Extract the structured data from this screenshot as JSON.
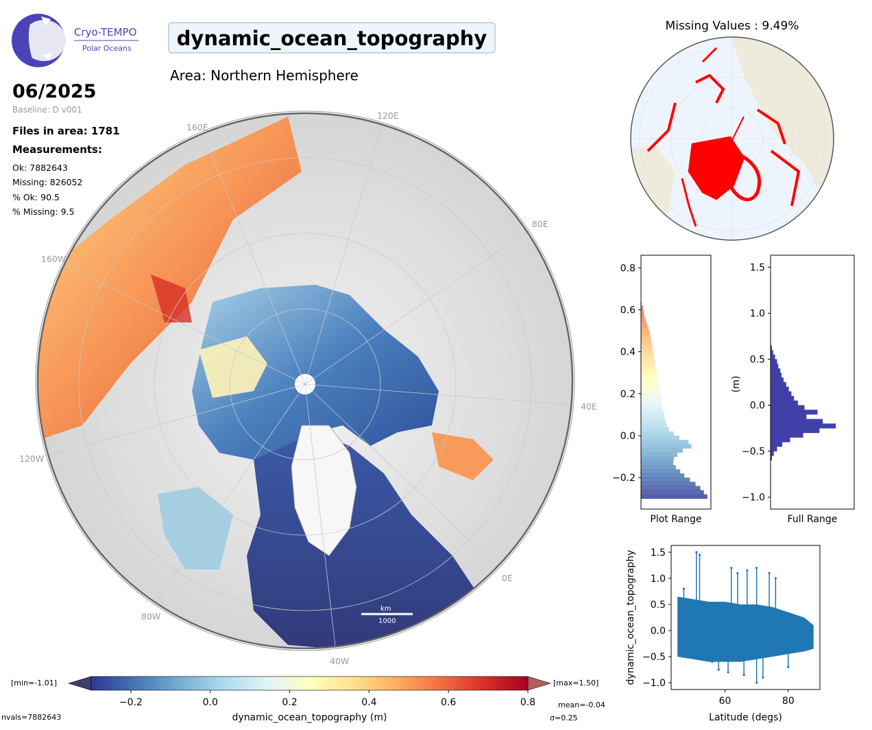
{
  "header": {
    "logo_text": "Cryo-TEMPO",
    "logo_subtext": "Polar Oceans",
    "title": "dynamic_ocean_topography",
    "area": "Area: Northern Hemisphere"
  },
  "info": {
    "date": "06/2025",
    "baseline": "Baseline: D v001",
    "files": "Files in area: 1781",
    "measurements_label": "Measurements:",
    "ok": "Ok: 7882643",
    "missing": "Missing: 826052",
    "pct_ok": "% Ok: 90.5",
    "pct_missing": "% Missing: 9.5"
  },
  "main_map": {
    "lon_labels": [
      "120E",
      "160E",
      "80E",
      "160W",
      "40E",
      "120W",
      "0E",
      "80W",
      "40W"
    ],
    "scale_label": "km",
    "scale_value": "1000"
  },
  "minimap": {
    "title": "Missing Values : 9.49%",
    "missing_color": "#ff0000",
    "land_color": "#efebdc",
    "ocean_color": "#eef4fd"
  },
  "colors": {
    "hist_full": "#4040a8",
    "scatter": "#1f77b4"
  },
  "chart_data": [
    {
      "type": "bar",
      "orientation": "horizontal",
      "xlabel": "Plot Range",
      "ylabel": "",
      "ylim": [
        -0.35,
        0.86
      ],
      "yticks": [
        -0.2,
        0.0,
        0.2,
        0.4,
        0.6,
        0.8
      ],
      "bins_y": [
        -0.3,
        -0.28,
        -0.26,
        -0.24,
        -0.22,
        -0.2,
        -0.18,
        -0.16,
        -0.14,
        -0.12,
        -0.1,
        -0.08,
        -0.06,
        -0.04,
        -0.02,
        0.0,
        0.02,
        0.04,
        0.06,
        0.08,
        0.1,
        0.12,
        0.14,
        0.16,
        0.18,
        0.2,
        0.22,
        0.24,
        0.26,
        0.28,
        0.3,
        0.32,
        0.34,
        0.36,
        0.38,
        0.4,
        0.42,
        0.44,
        0.46,
        0.48,
        0.5,
        0.52,
        0.54,
        0.56,
        0.58,
        0.6,
        0.62
      ],
      "values": [
        0.95,
        0.9,
        0.85,
        0.78,
        0.7,
        0.62,
        0.56,
        0.5,
        0.46,
        0.47,
        0.52,
        0.6,
        0.72,
        0.68,
        0.55,
        0.47,
        0.4,
        0.37,
        0.35,
        0.34,
        0.33,
        0.31,
        0.3,
        0.29,
        0.28,
        0.27,
        0.26,
        0.25,
        0.24,
        0.23,
        0.22,
        0.21,
        0.2,
        0.19,
        0.18,
        0.17,
        0.16,
        0.15,
        0.14,
        0.13,
        0.11,
        0.09,
        0.07,
        0.05,
        0.04,
        0.03,
        0.01
      ]
    },
    {
      "type": "bar",
      "orientation": "horizontal",
      "xlabel": "Full Range",
      "ylabel": "(m)",
      "ylim": [
        -1.13,
        1.63
      ],
      "yticks": [
        -1.0,
        -0.5,
        0.0,
        0.5,
        1.0,
        1.5
      ],
      "bins_y": [
        -0.6,
        -0.55,
        -0.5,
        -0.45,
        -0.4,
        -0.35,
        -0.3,
        -0.25,
        -0.2,
        -0.15,
        -0.1,
        -0.05,
        0.0,
        0.05,
        0.1,
        0.15,
        0.2,
        0.25,
        0.3,
        0.35,
        0.4,
        0.45,
        0.5,
        0.55,
        0.6
      ],
      "values": [
        0.02,
        0.05,
        0.1,
        0.18,
        0.3,
        0.5,
        0.75,
        1.0,
        0.8,
        0.55,
        0.72,
        0.52,
        0.42,
        0.36,
        0.32,
        0.28,
        0.24,
        0.2,
        0.17,
        0.15,
        0.12,
        0.1,
        0.07,
        0.04,
        0.02
      ]
    },
    {
      "type": "scatter",
      "xlabel": "Latitude (degs)",
      "ylabel": "dynamic_ocean_topography",
      "xlim": [
        43,
        90
      ],
      "ylim": [
        -1.13,
        1.63
      ],
      "xticks": [
        60,
        80
      ],
      "yticks": [
        -1.0,
        -0.5,
        0.0,
        0.5,
        1.0,
        1.5
      ],
      "band_x": [
        45,
        50,
        55,
        60,
        65,
        70,
        75,
        80,
        85,
        88
      ],
      "band_upper": [
        0.65,
        0.6,
        0.55,
        0.55,
        0.5,
        0.5,
        0.45,
        0.35,
        0.25,
        0.1
      ],
      "band_lower": [
        -0.5,
        -0.55,
        -0.6,
        -0.6,
        -0.6,
        -0.55,
        -0.5,
        -0.45,
        -0.4,
        -0.35
      ],
      "outliers": [
        [
          51,
          1.5
        ],
        [
          52,
          1.45
        ],
        [
          62,
          1.2
        ],
        [
          64,
          1.1
        ],
        [
          67,
          1.15
        ],
        [
          70,
          1.2
        ],
        [
          74,
          1.1
        ],
        [
          76,
          1.0
        ],
        [
          58,
          -0.75
        ],
        [
          61,
          -0.8
        ],
        [
          66,
          -0.85
        ],
        [
          70,
          -1.0
        ],
        [
          72,
          -0.9
        ],
        [
          80,
          -0.7
        ],
        [
          56,
          -0.6
        ],
        [
          47,
          0.8
        ]
      ]
    },
    {
      "type": "heatmap",
      "xlabel": "dynamic_ocean_topography (m)",
      "vmin": -0.3,
      "vmax": 0.8,
      "xticks": [
        -0.2,
        0.0,
        0.2,
        0.4,
        0.6,
        0.8
      ],
      "colormap": [
        "#313695",
        "#4575b4",
        "#74add1",
        "#abd9e9",
        "#e0f3f8",
        "#ffffbf",
        "#fee090",
        "#fdae61",
        "#f46d43",
        "#d73027",
        "#a50026"
      ],
      "min_label": "[min=-1.01]",
      "max_label": "[max=1.50]",
      "mean_label": "mean=-0.04",
      "sigma_label": "σ=0.25",
      "nvals_label": "nvals=7882643"
    }
  ]
}
